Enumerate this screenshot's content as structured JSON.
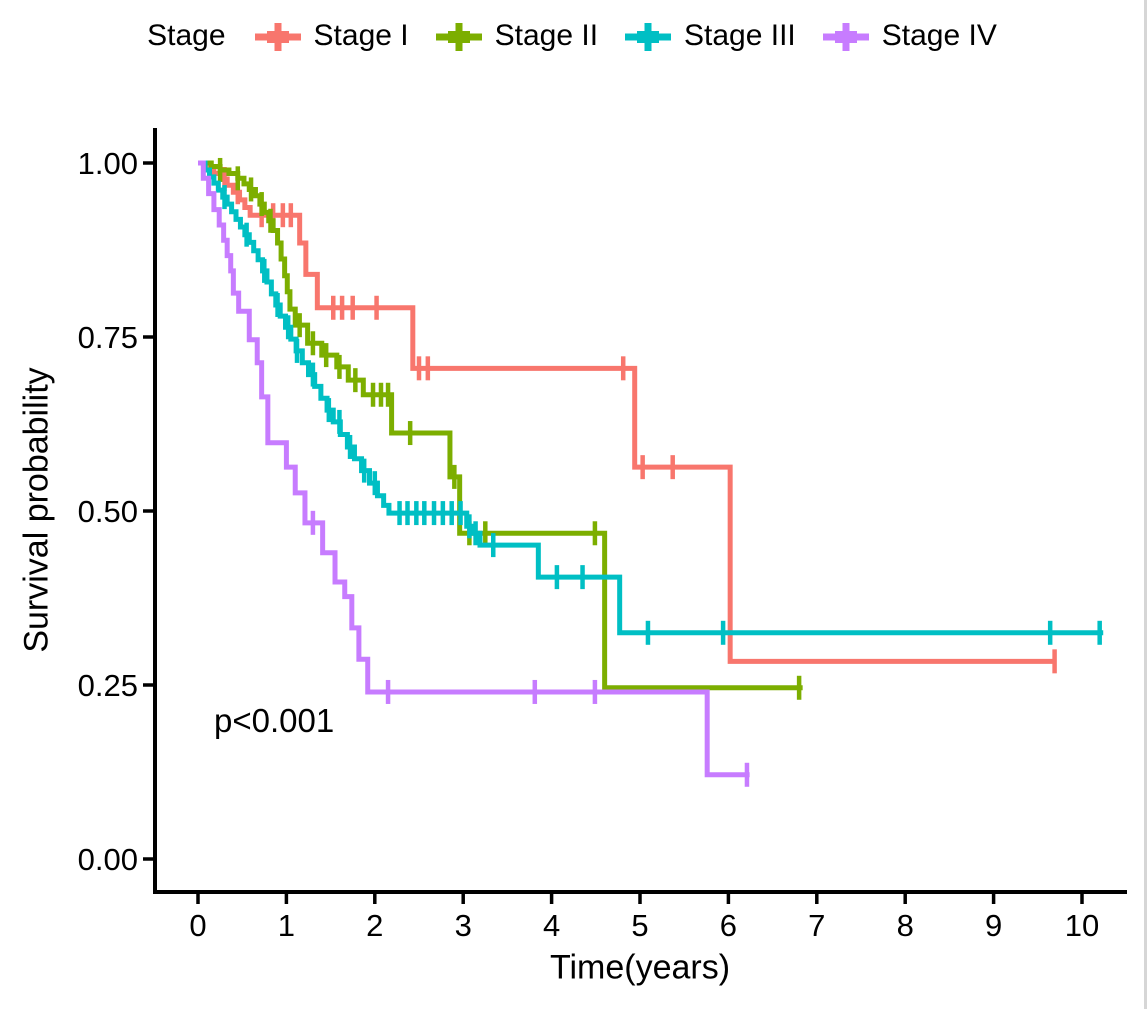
{
  "legend": {
    "title": "Stage",
    "entries": [
      {
        "label": "Stage I",
        "color": "#F8766D"
      },
      {
        "label": "Stage II",
        "color": "#7CAE00"
      },
      {
        "label": "Stage III",
        "color": "#00BFC4"
      },
      {
        "label": "Stage IV",
        "color": "#C77CFF"
      }
    ]
  },
  "chart_data": {
    "type": "line",
    "subtype": "kaplan-meier-step-curves",
    "title": "",
    "xlabel": "Time(years)",
    "ylabel": "Survival probability",
    "xlim": [
      0,
      10.5
    ],
    "ylim": [
      0,
      1.0
    ],
    "grid": "off",
    "legend_position": "top",
    "x_axis": {
      "title": "Time(years)",
      "ticks": [
        {
          "label": "0",
          "value": 0
        },
        {
          "label": "1",
          "value": 1
        },
        {
          "label": "2",
          "value": 2
        },
        {
          "label": "3",
          "value": 3
        },
        {
          "label": "4",
          "value": 4
        },
        {
          "label": "5",
          "value": 5
        },
        {
          "label": "6",
          "value": 6
        },
        {
          "label": "7",
          "value": 7
        },
        {
          "label": "8",
          "value": 8
        },
        {
          "label": "9",
          "value": 9
        },
        {
          "label": "10",
          "value": 10
        }
      ]
    },
    "y_axis": {
      "title": "Survival probability",
      "ticks": [
        {
          "label": "0.00",
          "value": 0.0
        },
        {
          "label": "0.25",
          "value": 0.25
        },
        {
          "label": "0.50",
          "value": 0.5
        },
        {
          "label": "0.75",
          "value": 0.75
        },
        {
          "label": "1.00",
          "value": 1.0
        }
      ]
    },
    "annotations": [
      {
        "text": "p<0.001",
        "x": 1.0,
        "y": 0.2
      }
    ],
    "series": [
      {
        "name": "Stage I",
        "color": "#F8766D",
        "steps": [
          [
            0,
            1.0
          ],
          [
            0.1,
            0.993
          ],
          [
            0.18,
            0.985
          ],
          [
            0.26,
            0.977
          ],
          [
            0.33,
            0.968
          ],
          [
            0.4,
            0.958
          ],
          [
            0.47,
            0.947
          ],
          [
            0.53,
            0.936
          ],
          [
            0.59,
            0.925
          ],
          [
            1.15,
            0.885
          ],
          [
            1.22,
            0.84
          ],
          [
            1.35,
            0.792
          ],
          [
            2.43,
            0.705
          ],
          [
            4.94,
            0.563
          ],
          [
            6.02,
            0.284
          ]
        ],
        "end_time": 9.71,
        "censor_times": [
          0.3,
          0.45,
          0.72,
          0.85,
          0.96,
          1.05,
          1.53,
          1.63,
          1.75,
          2.02,
          2.5,
          2.6,
          4.81,
          5.03,
          5.37,
          9.69
        ]
      },
      {
        "name": "Stage II",
        "color": "#7CAE00",
        "steps": [
          [
            0,
            1.0
          ],
          [
            0.15,
            0.995
          ],
          [
            0.25,
            0.99
          ],
          [
            0.35,
            0.985
          ],
          [
            0.45,
            0.978
          ],
          [
            0.52,
            0.97
          ],
          [
            0.58,
            0.962
          ],
          [
            0.65,
            0.953
          ],
          [
            0.7,
            0.941
          ],
          [
            0.75,
            0.929
          ],
          [
            0.8,
            0.917
          ],
          [
            0.85,
            0.903
          ],
          [
            0.9,
            0.885
          ],
          [
            0.94,
            0.862
          ],
          [
            0.98,
            0.838
          ],
          [
            1.01,
            0.815
          ],
          [
            1.04,
            0.79
          ],
          [
            1.1,
            0.767
          ],
          [
            1.24,
            0.741
          ],
          [
            1.4,
            0.724
          ],
          [
            1.57,
            0.707
          ],
          [
            1.7,
            0.688
          ],
          [
            1.87,
            0.667
          ],
          [
            2.19,
            0.612
          ],
          [
            2.85,
            0.549
          ],
          [
            2.96,
            0.468
          ],
          [
            4.6,
            0.246
          ]
        ],
        "end_time": 6.84,
        "censor_times": [
          0.25,
          0.45,
          0.6,
          0.72,
          0.82,
          1.15,
          1.3,
          1.45,
          1.6,
          1.78,
          1.98,
          2.07,
          2.15,
          2.4,
          2.9,
          3.07,
          3.25,
          4.49,
          6.8
        ]
      },
      {
        "name": "Stage III",
        "color": "#00BFC4",
        "steps": [
          [
            0,
            1.0
          ],
          [
            0.08,
            0.99
          ],
          [
            0.13,
            0.98
          ],
          [
            0.18,
            0.971
          ],
          [
            0.23,
            0.961
          ],
          [
            0.28,
            0.951
          ],
          [
            0.33,
            0.941
          ],
          [
            0.38,
            0.93
          ],
          [
            0.43,
            0.919
          ],
          [
            0.48,
            0.908
          ],
          [
            0.53,
            0.897
          ],
          [
            0.58,
            0.886
          ],
          [
            0.63,
            0.874
          ],
          [
            0.68,
            0.861
          ],
          [
            0.73,
            0.845
          ],
          [
            0.78,
            0.829
          ],
          [
            0.83,
            0.812
          ],
          [
            0.88,
            0.796
          ],
          [
            0.93,
            0.78
          ],
          [
            0.99,
            0.764
          ],
          [
            1.05,
            0.747
          ],
          [
            1.11,
            0.73
          ],
          [
            1.18,
            0.713
          ],
          [
            1.25,
            0.696
          ],
          [
            1.32,
            0.679
          ],
          [
            1.39,
            0.662
          ],
          [
            1.46,
            0.645
          ],
          [
            1.53,
            0.628
          ],
          [
            1.61,
            0.61
          ],
          [
            1.69,
            0.592
          ],
          [
            1.77,
            0.575
          ],
          [
            1.85,
            0.558
          ],
          [
            1.94,
            0.54
          ],
          [
            2.03,
            0.522
          ],
          [
            2.1,
            0.508
          ],
          [
            2.16,
            0.497
          ],
          [
            3.04,
            0.478
          ],
          [
            3.1,
            0.468
          ],
          [
            3.19,
            0.451
          ],
          [
            3.85,
            0.405
          ],
          [
            4.77,
            0.325
          ]
        ],
        "end_time": 10.24,
        "censor_times": [
          0.3,
          0.55,
          0.75,
          0.9,
          1.02,
          1.12,
          1.3,
          1.48,
          1.6,
          1.72,
          1.88,
          2.0,
          2.28,
          2.37,
          2.47,
          2.56,
          2.67,
          2.77,
          2.87,
          2.97,
          3.07,
          3.14,
          3.34,
          4.06,
          4.35,
          5.09,
          5.94,
          9.64,
          10.2
        ]
      },
      {
        "name": "Stage IV",
        "color": "#C77CFF",
        "steps": [
          [
            0,
            1.0
          ],
          [
            0.06,
            0.978
          ],
          [
            0.12,
            0.956
          ],
          [
            0.18,
            0.933
          ],
          [
            0.24,
            0.911
          ],
          [
            0.29,
            0.889
          ],
          [
            0.33,
            0.867
          ],
          [
            0.37,
            0.845
          ],
          [
            0.4,
            0.813
          ],
          [
            0.46,
            0.787
          ],
          [
            0.58,
            0.746
          ],
          [
            0.67,
            0.713
          ],
          [
            0.72,
            0.664
          ],
          [
            0.79,
            0.598
          ],
          [
            1.0,
            0.563
          ],
          [
            1.1,
            0.526
          ],
          [
            1.21,
            0.483
          ],
          [
            1.41,
            0.44
          ],
          [
            1.55,
            0.398
          ],
          [
            1.66,
            0.377
          ],
          [
            1.74,
            0.332
          ],
          [
            1.82,
            0.287
          ],
          [
            1.92,
            0.24
          ],
          [
            5.76,
            0.121
          ]
        ],
        "end_time": 6.24,
        "censor_times": [
          1.3,
          2.15,
          3.81,
          4.49,
          6.21
        ]
      }
    ],
    "p_value_text": "p<0.001"
  }
}
